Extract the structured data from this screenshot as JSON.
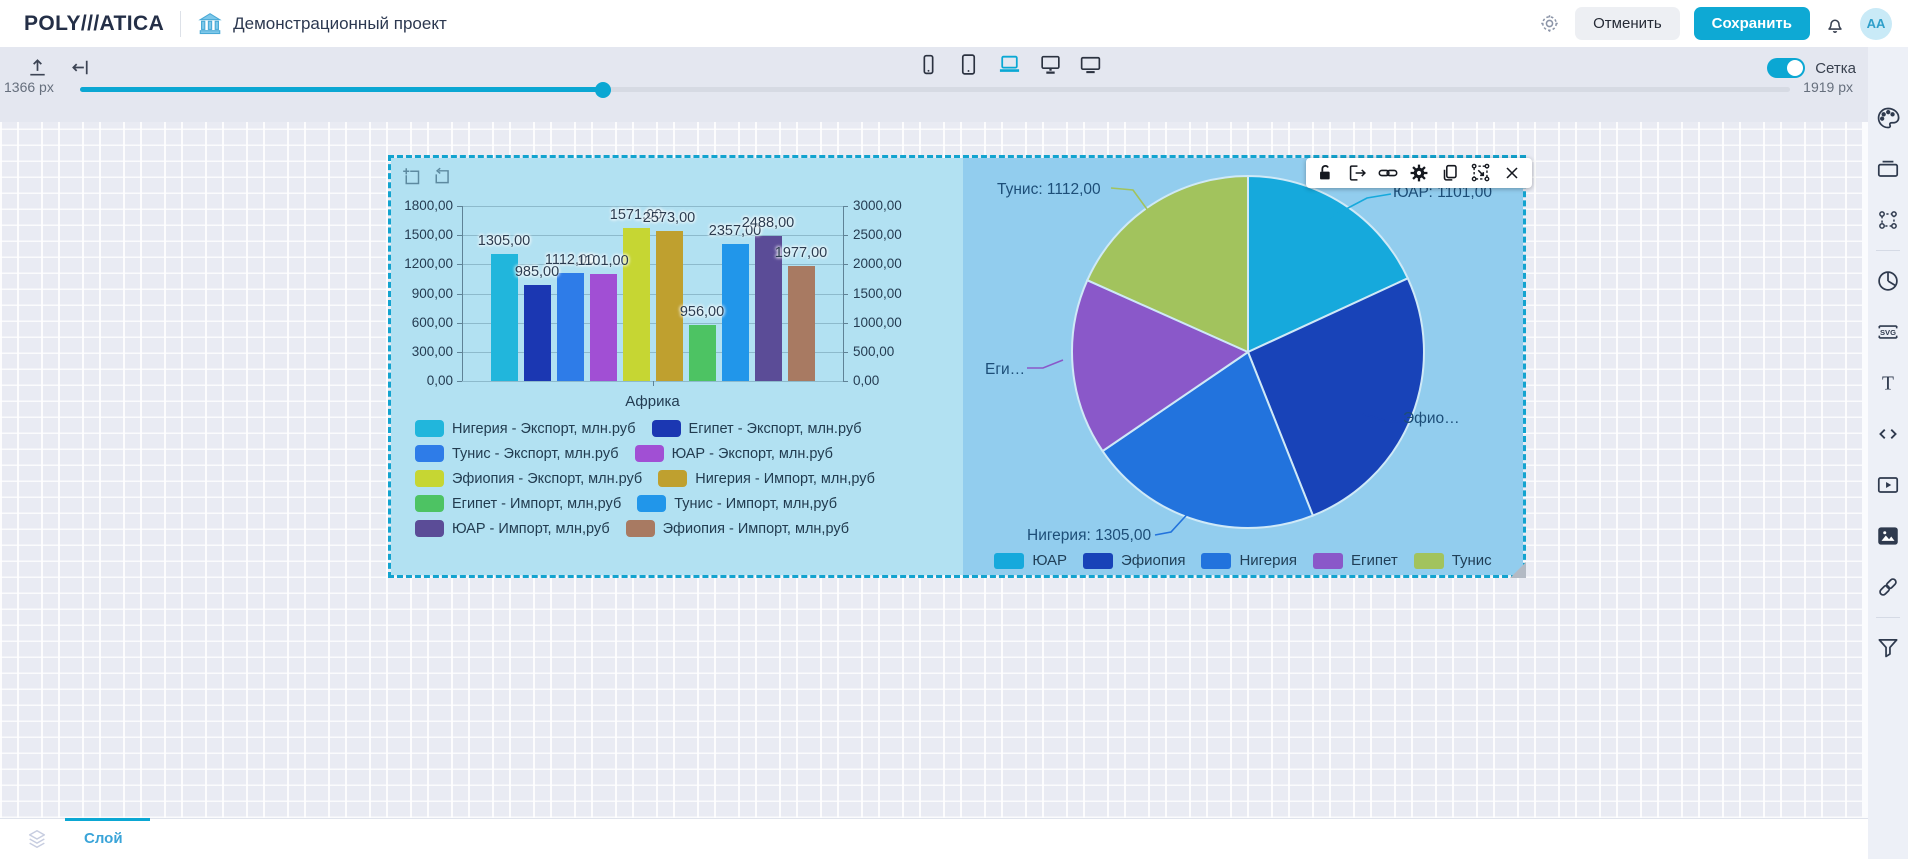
{
  "header": {
    "logo_text": "POLY///ATICA",
    "project_title": "Демонстрационный проект",
    "cancel_button": "Отменить",
    "save_button": "Сохранить",
    "avatar_initials": "AA",
    "accent_color": "#0ea9d4"
  },
  "toolbar": {
    "grid_toggle_label": "Сетка",
    "grid_toggle_on": true,
    "devices": [
      "phone",
      "tablet",
      "laptop",
      "monitor",
      "tv"
    ],
    "active_device": "laptop"
  },
  "width_slider": {
    "current_label": "1366 px",
    "max_label": "1919 px",
    "percent": 30.6
  },
  "sidebar": {
    "icons": [
      "palette",
      "widgets",
      "group-select",
      "pie-chart",
      "svg",
      "text",
      "code",
      "video",
      "image",
      "link",
      "filter"
    ]
  },
  "bottom_bar": {
    "layer_tab": "Слой"
  },
  "widget_toolbar": {
    "icons": [
      "unlock",
      "export",
      "link",
      "settings",
      "copy",
      "transform",
      "close"
    ]
  },
  "chart_data": [
    {
      "type": "bar",
      "title": "",
      "categories": [
        "Африка"
      ],
      "xlabel": "Африка",
      "grid": true,
      "legend_position": "bottom",
      "left_axis": {
        "min": 0,
        "max": 1800,
        "step": 300,
        "ticks": [
          "0,00",
          "300,00",
          "600,00",
          "900,00",
          "1200,00",
          "1500,00",
          "1800,00"
        ]
      },
      "right_axis": {
        "min": 0,
        "max": 3000,
        "step": 500,
        "ticks": [
          "0,00",
          "500,00",
          "1000,00",
          "1500,00",
          "2000,00",
          "2500,00",
          "3000,00"
        ]
      },
      "series": [
        {
          "name": "Нигерия - Экспорт, млн.руб",
          "value": 1305,
          "label": "1305,00",
          "color": "#21b6dc",
          "axis": "left"
        },
        {
          "name": "Египет - Экспорт, млн.руб",
          "value": 985,
          "label": "985,00",
          "color": "#1b37b2",
          "axis": "left"
        },
        {
          "name": "Тунис - Экспорт, млн.руб",
          "value": 1112,
          "label": "1112,00",
          "color": "#2e7ce8",
          "axis": "left"
        },
        {
          "name": "ЮАР - Экспорт, млн.руб",
          "value": 1101,
          "label": "1101,00",
          "color": "#a14fd4",
          "axis": "left"
        },
        {
          "name": "Эфиопия - Экспорт, млн.руб",
          "value": 1571,
          "label": "1571,00",
          "color": "#c6d633",
          "axis": "left"
        },
        {
          "name": "Нигерия - Импорт, млн,руб",
          "value": 2573,
          "label": "2573,00",
          "color": "#bfa02f",
          "axis": "right"
        },
        {
          "name": "Египет - Импорт, млн,руб",
          "value": 956,
          "label": "956,00",
          "color": "#4dc363",
          "axis": "right"
        },
        {
          "name": "Тунис - Импорт, млн,руб",
          "value": 2357,
          "label": "2357,00",
          "color": "#2196ea",
          "axis": "right"
        },
        {
          "name": "ЮАР - Импорт, млн,руб",
          "value": 2488,
          "label": "2488,00",
          "color": "#5b4c97",
          "axis": "right"
        },
        {
          "name": "Эфиопия - Импорт, млн,руб",
          "value": 1977,
          "label": "1977,00",
          "color": "#a87a62",
          "axis": "right"
        }
      ]
    },
    {
      "type": "pie",
      "legend_position": "bottom",
      "start_angle_deg": 0,
      "clockwise": true,
      "slices": [
        {
          "name": "ЮАР",
          "value": 1101,
          "color": "#16a9dc",
          "callout": "ЮАР: 1101,00"
        },
        {
          "name": "Эфиопия",
          "value": 1571,
          "color": "#1843b8",
          "callout": "Эфио…"
        },
        {
          "name": "Нигерия",
          "value": 1305,
          "color": "#2273dd",
          "callout": "Нигерия: 1305,00"
        },
        {
          "name": "Египет",
          "value": 985,
          "color": "#8a58c9",
          "callout": "Еги…"
        },
        {
          "name": "Тунис",
          "value": 1112,
          "color": "#a2c35d",
          "callout": "Тунис: 1112,00"
        }
      ]
    }
  ]
}
